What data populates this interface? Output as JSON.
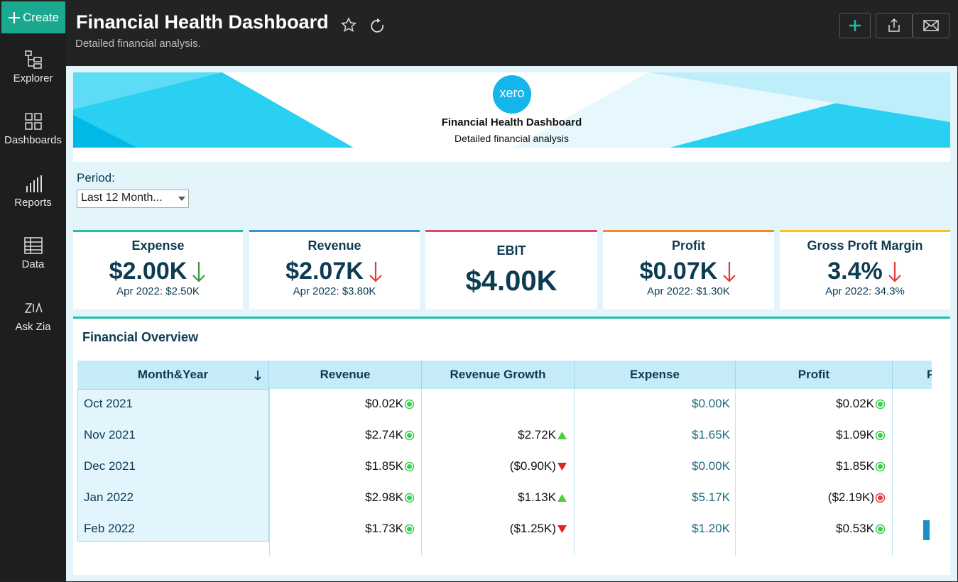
{
  "sidebar": {
    "create": "Create",
    "items": [
      "Explorer",
      "Dashboards",
      "Reports",
      "Data",
      "Ask Zia"
    ]
  },
  "header": {
    "title": "Financial Health Dashboard",
    "subtitle": "Detailed financial analysis."
  },
  "banner": {
    "logo": "xero",
    "title": "Financial Health Dashboard",
    "subtitle": "Detailed financial analysis"
  },
  "filter": {
    "label": "Period:",
    "value": "Last 12 Month..."
  },
  "kpis": [
    {
      "title": "Expense",
      "value": "$2.00K",
      "compare": "Apr 2022: $2.50K",
      "trend": "down",
      "trend_color": "#3a9a3a",
      "color": "#1fc0a5"
    },
    {
      "title": "Revenue",
      "value": "$2.07K",
      "compare": "Apr 2022: $3.80K",
      "trend": "down",
      "trend_color": "#e03c3c",
      "color": "#3b8fd8"
    },
    {
      "title": "EBIT",
      "value": "$4.00K",
      "compare": null,
      "trend": null,
      "trend_color": null,
      "color": "#e0456c"
    },
    {
      "title": "Profit",
      "value": "$0.07K",
      "compare": "Apr 2022: $1.30K",
      "trend": "down",
      "trend_color": "#e03c3c",
      "color": "#f08a2c"
    },
    {
      "title": "Gross Proft Margin",
      "value": "3.4%",
      "compare": "Apr 2022: 34.3%",
      "trend": "down",
      "trend_color": "#e03c3c",
      "color": "#f5c518"
    }
  ],
  "table": {
    "title": "Financial Overview",
    "columns": [
      "Month&Year",
      "Revenue",
      "Revenue Growth",
      "Expense",
      "Profit",
      "P"
    ],
    "rows": [
      [
        "Oct 2021",
        {
          "text": "$0.02K",
          "icon": "dot-green"
        },
        null,
        {
          "text": "$0.00K",
          "icon": null
        },
        {
          "text": "$0.02K",
          "icon": "dot-green"
        }
      ],
      [
        "Nov 2021",
        {
          "text": "$2.74K",
          "icon": "dot-green"
        },
        {
          "text": "$2.72K",
          "icon": "up-green"
        },
        {
          "text": "$1.65K",
          "icon": null
        },
        {
          "text": "$1.09K",
          "icon": "dot-green"
        }
      ],
      [
        "Dec 2021",
        {
          "text": "$1.85K",
          "icon": "dot-green"
        },
        {
          "text": "($0.90K)",
          "icon": "down-red"
        },
        {
          "text": "$0.00K",
          "icon": null
        },
        {
          "text": "$1.85K",
          "icon": "dot-green"
        }
      ],
      [
        "Jan 2022",
        {
          "text": "$2.98K",
          "icon": "dot-green"
        },
        {
          "text": "$1.13K",
          "icon": "up-green"
        },
        {
          "text": "$5.17K",
          "icon": null
        },
        {
          "text": "($2.19K)",
          "icon": "dot-red"
        }
      ],
      [
        "Feb 2022",
        {
          "text": "$1.73K",
          "icon": "dot-green"
        },
        {
          "text": "($1.25K)",
          "icon": "down-red"
        },
        {
          "text": "$1.20K",
          "icon": null
        },
        {
          "text": "$0.53K",
          "icon": "dot-green"
        }
      ]
    ]
  }
}
